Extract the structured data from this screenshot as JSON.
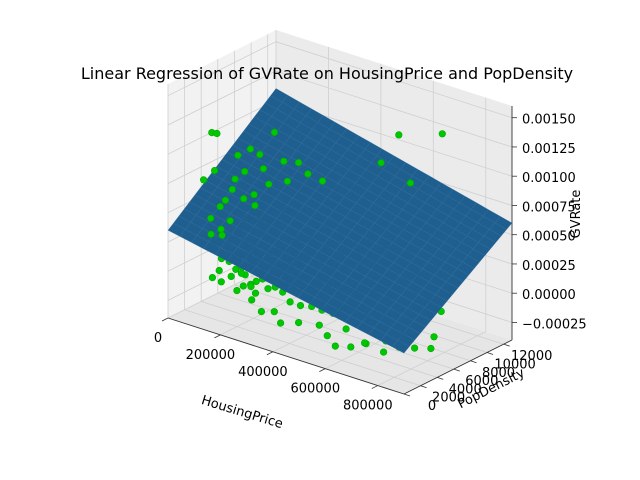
{
  "chart_data": {
    "type": "scatter",
    "title": "Linear Regression of GVRate on HousingPrice and PopDensity",
    "xlabel": "HousingPrice",
    "ylabel": "PopDensity",
    "zlabel": "GVRate",
    "xlim": [
      0,
      900000
    ],
    "ylim": [
      0,
      13000
    ],
    "zlim": [
      -0.0004,
      0.0016
    ],
    "x_ticks": [
      "0",
      "200000",
      "400000",
      "600000",
      "800000"
    ],
    "x_tick_values": [
      0,
      200000,
      400000,
      600000,
      800000
    ],
    "y_ticks": [
      "0",
      "2000",
      "4000",
      "6000",
      "8000",
      "10000",
      "12000"
    ],
    "y_tick_values": [
      0,
      2000,
      4000,
      6000,
      8000,
      10000,
      12000
    ],
    "z_ticks": [
      "−0.00025",
      "0.00000",
      "0.00025",
      "0.00050",
      "0.00075",
      "0.00100",
      "0.00125",
      "0.00150"
    ],
    "z_tick_values": [
      -0.00025,
      0,
      0.00025,
      0.0005,
      0.00075,
      0.001,
      0.00125,
      0.0015
    ],
    "grid": true,
    "surface": {
      "type": "plane",
      "x_range": [
        0,
        900000
      ],
      "y_range": [
        0,
        13000
      ],
      "corner_z": {
        "x0_y0": 0.00035,
        "x1_y0": -5e-05,
        "x0_y1": 0.0011,
        "x1_y1": 0.0006
      },
      "color": "#1f5f8f"
    },
    "point_color": "#00c800",
    "points": [
      [
        120000,
        2500,
        0.00055
      ],
      [
        130000,
        1500,
        0.0009
      ],
      [
        150000,
        3000,
        0.0007
      ],
      [
        140000,
        1000,
        0.0003
      ],
      [
        160000,
        2200,
        0.00035
      ],
      [
        170000,
        800,
        0.0001
      ],
      [
        180000,
        3500,
        0.00045
      ],
      [
        190000,
        1200,
        0.00025
      ],
      [
        200000,
        2800,
        0.0003
      ],
      [
        210000,
        1800,
        0.0002
      ],
      [
        220000,
        3200,
        0.0004
      ],
      [
        230000,
        900,
        0.00015
      ],
      [
        240000,
        2100,
        0.00025
      ],
      [
        250000,
        1400,
        0.0001
      ],
      [
        260000,
        3600,
        0.00035
      ],
      [
        270000,
        2600,
        0.0002
      ],
      [
        280000,
        1100,
        5e-05
      ],
      [
        290000,
        3000,
        0.00025
      ],
      [
        300000,
        2000,
        0.00015
      ],
      [
        310000,
        1600,
        0.0001
      ],
      [
        320000,
        2400,
        0.0002
      ],
      [
        330000,
        3400,
        0.0003
      ],
      [
        340000,
        1300,
        5e-05
      ],
      [
        350000,
        2700,
        0.00015
      ],
      [
        360000,
        1900,
        0.0001
      ],
      [
        370000,
        3100,
        0.0002
      ],
      [
        380000,
        2300,
        0.0001
      ],
      [
        390000,
        1500,
        5e-05
      ],
      [
        400000,
        2900,
        0.00015
      ],
      [
        410000,
        2100,
        0.0001
      ],
      [
        150000,
        4500,
        0.0008
      ],
      [
        170000,
        5000,
        0.0006
      ],
      [
        190000,
        4200,
        0.0005
      ],
      [
        210000,
        5500,
        0.0007
      ],
      [
        230000,
        4800,
        0.0004
      ],
      [
        250000,
        6000,
        0.0005
      ],
      [
        270000,
        5200,
        0.0004
      ],
      [
        290000,
        6500,
        0.00045
      ],
      [
        310000,
        5800,
        0.0003
      ],
      [
        330000,
        7000,
        0.0004
      ],
      [
        350000,
        6200,
        0.0003
      ],
      [
        370000,
        7500,
        0.0004
      ],
      [
        390000,
        6800,
        0.00025
      ],
      [
        410000,
        8000,
        0.00035
      ],
      [
        430000,
        7200,
        0.0002
      ],
      [
        450000,
        8500,
        0.0003
      ],
      [
        470000,
        7800,
        0.0002
      ],
      [
        490000,
        9000,
        0.0003
      ],
      [
        510000,
        8200,
        0.0002
      ],
      [
        530000,
        9500,
        0.00025
      ],
      [
        440000,
        3500,
        5e-05
      ],
      [
        460000,
        2500,
        0.0
      ],
      [
        480000,
        4200,
        0.0001
      ],
      [
        500000,
        3000,
        0.0
      ],
      [
        520000,
        4800,
        5e-05
      ],
      [
        540000,
        3600,
        -5e-05
      ],
      [
        560000,
        5200,
        5e-05
      ],
      [
        580000,
        4000,
        -5e-05
      ],
      [
        600000,
        5800,
        5e-05
      ],
      [
        620000,
        4400,
        -0.0001
      ],
      [
        640000,
        6200,
        0.0
      ],
      [
        660000,
        5000,
        -0.0001
      ],
      [
        680000,
        6600,
        0.0
      ],
      [
        700000,
        5400,
        -5e-05
      ],
      [
        720000,
        7000,
        0.0001
      ],
      [
        740000,
        5800,
        -5e-05
      ],
      [
        760000,
        7400,
        5e-05
      ],
      [
        780000,
        6200,
        0.0
      ],
      [
        800000,
        8800,
        0.0001
      ],
      [
        820000,
        7000,
        0.0
      ],
      [
        120000,
        500,
        0.00085
      ],
      [
        110000,
        1800,
        0.0012
      ],
      [
        180000,
        200,
        0.0013
      ],
      [
        140000,
        4000,
        0.00095
      ],
      [
        200000,
        6500,
        0.0011
      ],
      [
        260000,
        7500,
        0.00085
      ],
      [
        480000,
        10500,
        0.0009
      ],
      [
        560000,
        11500,
        0.00075
      ],
      [
        650000,
        12500,
        0.0012
      ],
      [
        800000,
        12800,
        0.00055
      ],
      [
        700000,
        11000,
        0.0004
      ],
      [
        620000,
        9500,
        0.0003
      ],
      [
        580000,
        10000,
        0.00045
      ],
      [
        500000,
        12000,
        0.0011
      ],
      [
        350000,
        200,
        -0.0001
      ],
      [
        420000,
        300,
        -0.00015
      ],
      [
        300000,
        600,
        -5e-05
      ],
      [
        250000,
        400,
        0.0
      ],
      [
        200000,
        100,
        5e-05
      ],
      [
        160000,
        300,
        5e-05
      ],
      [
        380000,
        800,
        -0.0001
      ],
      [
        460000,
        1200,
        -0.00015
      ],
      [
        520000,
        1800,
        -0.00015
      ],
      [
        560000,
        1500,
        -0.0002
      ],
      [
        600000,
        2500,
        -0.00015
      ],
      [
        660000,
        3000,
        -0.00025
      ],
      [
        720000,
        3500,
        -0.0002
      ],
      [
        760000,
        4200,
        -0.00015
      ],
      [
        840000,
        5500,
        -0.00015
      ],
      [
        230000,
        2000,
        0.00035
      ],
      [
        245000,
        2500,
        0.0003
      ],
      [
        255000,
        3300,
        0.0004
      ],
      [
        265000,
        1700,
        0.00018
      ],
      [
        275000,
        2200,
        0.0002
      ],
      [
        285000,
        3800,
        0.00042
      ],
      [
        295000,
        1300,
        8e-05
      ],
      [
        305000,
        2700,
        0.00022
      ],
      [
        315000,
        3500,
        0.0003
      ],
      [
        325000,
        1900,
        0.00012
      ],
      [
        335000,
        2500,
        0.00018
      ],
      [
        345000,
        4200,
        0.00035
      ],
      [
        355000,
        1700,
        6e-05
      ],
      [
        365000,
        2900,
        0.00016
      ],
      [
        375000,
        3700,
        0.00024
      ],
      [
        385000,
        2000,
        6e-05
      ],
      [
        395000,
        4400,
        0.00028
      ],
      [
        405000,
        3200,
        0.00012
      ],
      [
        415000,
        1600,
        -2e-05
      ],
      [
        425000,
        2800,
        8e-05
      ],
      [
        435000,
        4600,
        0.0002
      ],
      [
        445000,
        1900,
        -4e-05
      ],
      [
        455000,
        3700,
        0.0001
      ],
      [
        465000,
        5200,
        0.00018
      ],
      [
        475000,
        2300,
        -4e-05
      ],
      [
        485000,
        4000,
        6e-05
      ],
      [
        495000,
        6000,
        0.0002
      ],
      [
        505000,
        2600,
        -6e-05
      ],
      [
        515000,
        4500,
        6e-05
      ],
      [
        525000,
        6800,
        0.00022
      ],
      [
        535000,
        3000,
        -8e-05
      ],
      [
        545000,
        5200,
        4e-05
      ],
      [
        555000,
        7200,
        0.0002
      ],
      [
        130000,
        2800,
        0.0006
      ],
      [
        135000,
        3800,
        0.00075
      ],
      [
        145000,
        1800,
        0.0004
      ],
      [
        155000,
        2600,
        0.00045
      ],
      [
        165000,
        3900,
        0.0006
      ],
      [
        175000,
        1600,
        0.0003
      ],
      [
        185000,
        2900,
        0.0004
      ],
      [
        195000,
        4300,
        0.00055
      ],
      [
        205000,
        1600,
        0.00022
      ],
      [
        215000,
        2500,
        0.0003
      ],
      [
        225000,
        3900,
        0.00045
      ],
      [
        235000,
        1500,
        0.00015
      ],
      [
        125000,
        1200,
        0.0005
      ],
      [
        145000,
        600,
        0.0004
      ],
      [
        165000,
        1300,
        0.00038
      ],
      [
        185000,
        600,
        0.00022
      ],
      [
        205000,
        900,
        0.0002
      ],
      [
        225000,
        500,
        0.0001
      ],
      [
        245000,
        1100,
        0.00012
      ],
      [
        265000,
        700,
        4e-05
      ],
      [
        285000,
        1000,
        4e-05
      ],
      [
        305000,
        900,
        0.0
      ],
      [
        140000,
        5500,
        0.00095
      ],
      [
        160000,
        6000,
        0.0009
      ],
      [
        180000,
        5800,
        0.0008
      ],
      [
        220000,
        7000,
        0.00085
      ],
      [
        240000,
        6800,
        0.0007
      ],
      [
        280000,
        8000,
        0.00075
      ],
      [
        320000,
        8500,
        0.0007
      ],
      [
        360000,
        9000,
        0.00065
      ],
      [
        400000,
        9800,
        0.00065
      ],
      [
        440000,
        10200,
        0.0006
      ],
      [
        600000,
        1200,
        -0.00025
      ],
      [
        640000,
        1800,
        -0.00025
      ],
      [
        680000,
        2200,
        -0.0002
      ],
      [
        740000,
        2600,
        -0.00025
      ],
      [
        780000,
        3200,
        -0.0002
      ],
      [
        820000,
        3800,
        -0.0002
      ],
      [
        860000,
        4500,
        -0.0002
      ],
      [
        700000,
        8000,
        0.0002
      ],
      [
        740000,
        8800,
        0.00025
      ],
      [
        660000,
        7800,
        0.00015
      ]
    ]
  }
}
